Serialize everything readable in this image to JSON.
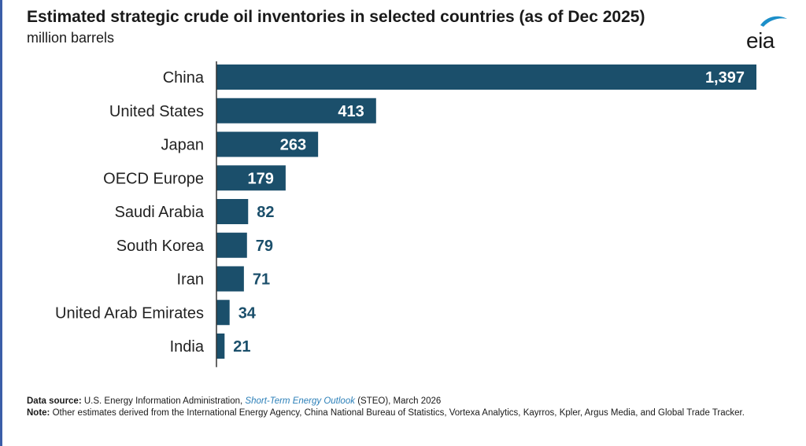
{
  "title": "Estimated strategic crude oil inventories in selected countries (as of Dec 2025)",
  "subtitle": "million barrels",
  "logo": {
    "text": "eia",
    "icon": "eia-leaf-logo"
  },
  "footer": {
    "source_label": "Data source:",
    "source_text_pre": "U.S. Energy Information Administration,",
    "source_link": "Short-Term Energy Outlook",
    "source_text_post": "(STEO), March 2026",
    "note_label": "Note:",
    "note_text": "Other estimates derived from the International Energy Agency, China National Bureau of Statistics, Vortexa Analytics, Kayrros, Kpler, Argus Media, and Global Trade Tracker."
  },
  "colors": {
    "bar": "#1b4f6b",
    "label_inside": "#ffffff",
    "label_outside": "#1b4f6b",
    "axis": "#333333"
  },
  "chart_data": {
    "type": "bar",
    "orientation": "horizontal",
    "categories": [
      "China",
      "United States",
      "Japan",
      "OECD Europe",
      "Saudi Arabia",
      "South Korea",
      "Iran",
      "United Arab Emirates",
      "India"
    ],
    "values": [
      1397,
      413,
      263,
      179,
      82,
      79,
      71,
      34,
      21
    ],
    "value_labels": [
      "1,397",
      "413",
      "263",
      "179",
      "82",
      "79",
      "71",
      "34",
      "21"
    ],
    "xlim": [
      0,
      1397
    ],
    "grid": false,
    "legend": "none"
  }
}
